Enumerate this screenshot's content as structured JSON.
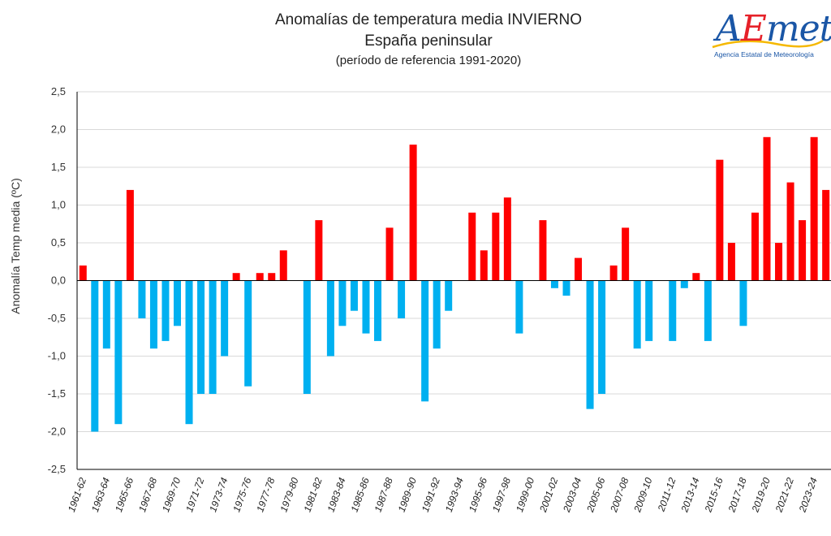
{
  "header": {
    "title": "Anomalías de temperatura media INVIERNO",
    "subtitle": "España peninsular",
    "reference": "(período de referencia 1991-2020)"
  },
  "logo": {
    "letter_a": "A",
    "letter_e": "E",
    "rest": "met",
    "tagline": "Agencia Estatal de Meteorología"
  },
  "colors": {
    "positive": "#ff0000",
    "negative": "#00b0f0",
    "grid": "#d9d9d9",
    "axis": "#000000"
  },
  "chart_data": {
    "type": "bar",
    "title": "Anomalías de temperatura media INVIERNO",
    "subtitle": "España peninsular",
    "ylabel": "Anomalía Temp media (ºC)",
    "ylim": [
      -2.5,
      2.5
    ],
    "ytick_step": 0.5,
    "grid": "horizontal",
    "categories": [
      "1961-62",
      "1962-63",
      "1963-64",
      "1964-65",
      "1965-66",
      "1966-67",
      "1967-68",
      "1968-69",
      "1969-70",
      "1970-71",
      "1971-72",
      "1972-73",
      "1973-74",
      "1974-75",
      "1975-76",
      "1976-77",
      "1977-78",
      "1978-79",
      "1979-80",
      "1980-81",
      "1981-82",
      "1982-83",
      "1983-84",
      "1984-85",
      "1985-86",
      "1986-87",
      "1987-88",
      "1988-89",
      "1989-90",
      "1990-91",
      "1991-92",
      "1992-93",
      "1993-94",
      "1994-95",
      "1995-96",
      "1996-97",
      "1997-98",
      "1998-99",
      "1999-00",
      "2000-01",
      "2001-02",
      "2002-03",
      "2003-04",
      "2004-05",
      "2005-06",
      "2006-07",
      "2007-08",
      "2008-09",
      "2009-10",
      "2010-11",
      "2011-12",
      "2012-13",
      "2013-14",
      "2014-15",
      "2015-16",
      "2016-17",
      "2017-18",
      "2018-19",
      "2019-20",
      "2020-21",
      "2021-22",
      "2022-23",
      "2023-24",
      "2024-25"
    ],
    "x_tick_labels": [
      "1961-62",
      "1963-64",
      "1965-66",
      "1967-68",
      "1969-70",
      "1971-72",
      "1973-74",
      "1975-76",
      "1977-78",
      "1979-80",
      "1981-82",
      "1983-84",
      "1985-86",
      "1987-88",
      "1989-90",
      "1991-92",
      "1993-94",
      "1995-96",
      "1997-98",
      "1999-00",
      "2001-02",
      "2003-04",
      "2005-06",
      "2007-08",
      "2009-10",
      "2011-12",
      "2013-14",
      "2015-16",
      "2017-18",
      "2019-20",
      "2021-22",
      "2023-24"
    ],
    "values": [
      0.2,
      -2.0,
      -0.9,
      -1.9,
      1.2,
      -0.5,
      -0.9,
      -0.8,
      -0.6,
      -1.9,
      -1.5,
      -1.5,
      -1.0,
      0.1,
      -1.4,
      0.1,
      0.1,
      0.4,
      0.0,
      -1.5,
      0.8,
      -1.0,
      -0.6,
      -0.4,
      -0.7,
      -0.8,
      0.7,
      -0.5,
      1.8,
      -1.6,
      -0.9,
      -0.4,
      0.0,
      0.9,
      0.4,
      0.9,
      1.1,
      -0.7,
      0.0,
      0.8,
      -0.1,
      -0.2,
      0.3,
      -1.7,
      -1.5,
      0.2,
      0.7,
      -0.9,
      -0.8,
      0.0,
      -0.8,
      -0.1,
      0.1,
      -0.8,
      1.6,
      0.5,
      -0.6,
      0.9,
      1.9,
      0.5,
      1.3,
      0.8,
      1.9,
      1.2
    ]
  }
}
